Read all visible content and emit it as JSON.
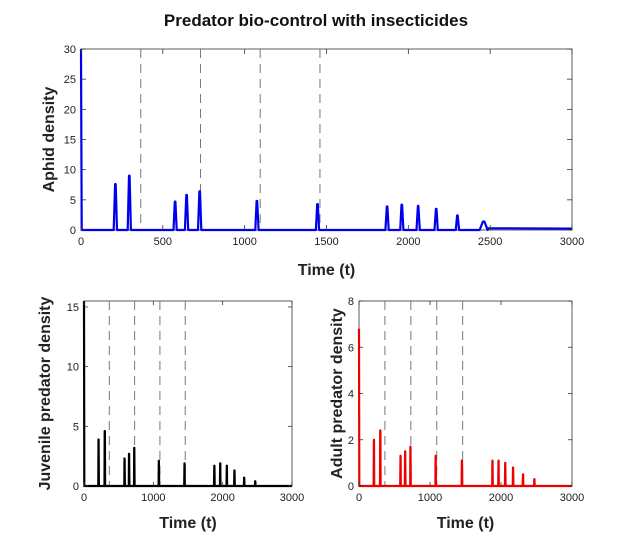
{
  "figure_title": "Predator bio-control with insecticides",
  "chart_data": [
    {
      "id": "aphid",
      "type": "line",
      "title": "Predator bio-control with insecticides",
      "xlabel": "Time (t)",
      "ylabel": "Aphid density",
      "xlim": [
        0,
        3000
      ],
      "ylim": [
        0,
        30
      ],
      "xticks": [
        0,
        500,
        1000,
        1500,
        2000,
        2500,
        3000
      ],
      "yticks": [
        0,
        5,
        10,
        15,
        20,
        25,
        30
      ],
      "color": "#0000ee",
      "initial_value": 30,
      "insecticide_times": [
        365,
        730,
        1095,
        1460
      ],
      "peak_width": 18,
      "peaks": [
        {
          "t": 210,
          "v": 7.6
        },
        {
          "t": 295,
          "v": 9.0
        },
        {
          "t": 575,
          "v": 4.7
        },
        {
          "t": 645,
          "v": 5.8
        },
        {
          "t": 725,
          "v": 6.4
        },
        {
          "t": 1075,
          "v": 4.8
        },
        {
          "t": 1445,
          "v": 4.3
        },
        {
          "t": 1870,
          "v": 3.9
        },
        {
          "t": 1960,
          "v": 4.2
        },
        {
          "t": 2060,
          "v": 4.0
        },
        {
          "t": 2170,
          "v": 3.5
        },
        {
          "t": 2300,
          "v": 2.4
        },
        {
          "t": 2460,
          "v": 1.4,
          "w": 45
        }
      ],
      "baseline_tail": {
        "from": 2480,
        "to": 3000,
        "v": 0.3
      }
    },
    {
      "id": "juvenile",
      "type": "line",
      "xlabel": "Time (t)",
      "ylabel": "Juvenile predator density",
      "xlim": [
        0,
        3000
      ],
      "ylim": [
        0,
        15.5
      ],
      "xticks": [
        0,
        1000,
        2000,
        3000
      ],
      "yticks": [
        0,
        5,
        10,
        15
      ],
      "color": "#000000",
      "initial_value": 15.5,
      "insecticide_times": [
        365,
        730,
        1095,
        1460
      ],
      "peak_width": 8,
      "peaks": [
        {
          "t": 210,
          "v": 3.9
        },
        {
          "t": 300,
          "v": 4.6
        },
        {
          "t": 585,
          "v": 2.3
        },
        {
          "t": 650,
          "v": 2.7
        },
        {
          "t": 725,
          "v": 3.2
        },
        {
          "t": 1080,
          "v": 2.1
        },
        {
          "t": 1450,
          "v": 1.9
        },
        {
          "t": 1880,
          "v": 1.7
        },
        {
          "t": 1965,
          "v": 1.9
        },
        {
          "t": 2060,
          "v": 1.7
        },
        {
          "t": 2170,
          "v": 1.3
        },
        {
          "t": 2310,
          "v": 0.7
        },
        {
          "t": 2470,
          "v": 0.4
        }
      ]
    },
    {
      "id": "adult",
      "type": "line",
      "xlabel": "Time (t)",
      "ylabel": "Adult predator density",
      "xlim": [
        0,
        3000
      ],
      "ylim": [
        0,
        8
      ],
      "xticks": [
        0,
        1000,
        2000,
        3000
      ],
      "yticks": [
        0,
        2,
        4,
        6,
        8
      ],
      "color": "#ee0000",
      "initial_value": 6.8,
      "insecticide_times": [
        365,
        730,
        1095,
        1460
      ],
      "peak_width": 8,
      "peaks": [
        {
          "t": 210,
          "v": 2.0
        },
        {
          "t": 300,
          "v": 2.4
        },
        {
          "t": 585,
          "v": 1.3
        },
        {
          "t": 650,
          "v": 1.5
        },
        {
          "t": 725,
          "v": 1.7
        },
        {
          "t": 1080,
          "v": 1.3
        },
        {
          "t": 1450,
          "v": 1.1
        },
        {
          "t": 1880,
          "v": 1.1
        },
        {
          "t": 1965,
          "v": 1.1
        },
        {
          "t": 2060,
          "v": 1.0
        },
        {
          "t": 2170,
          "v": 0.8
        },
        {
          "t": 2310,
          "v": 0.5
        },
        {
          "t": 2470,
          "v": 0.3
        }
      ]
    }
  ]
}
